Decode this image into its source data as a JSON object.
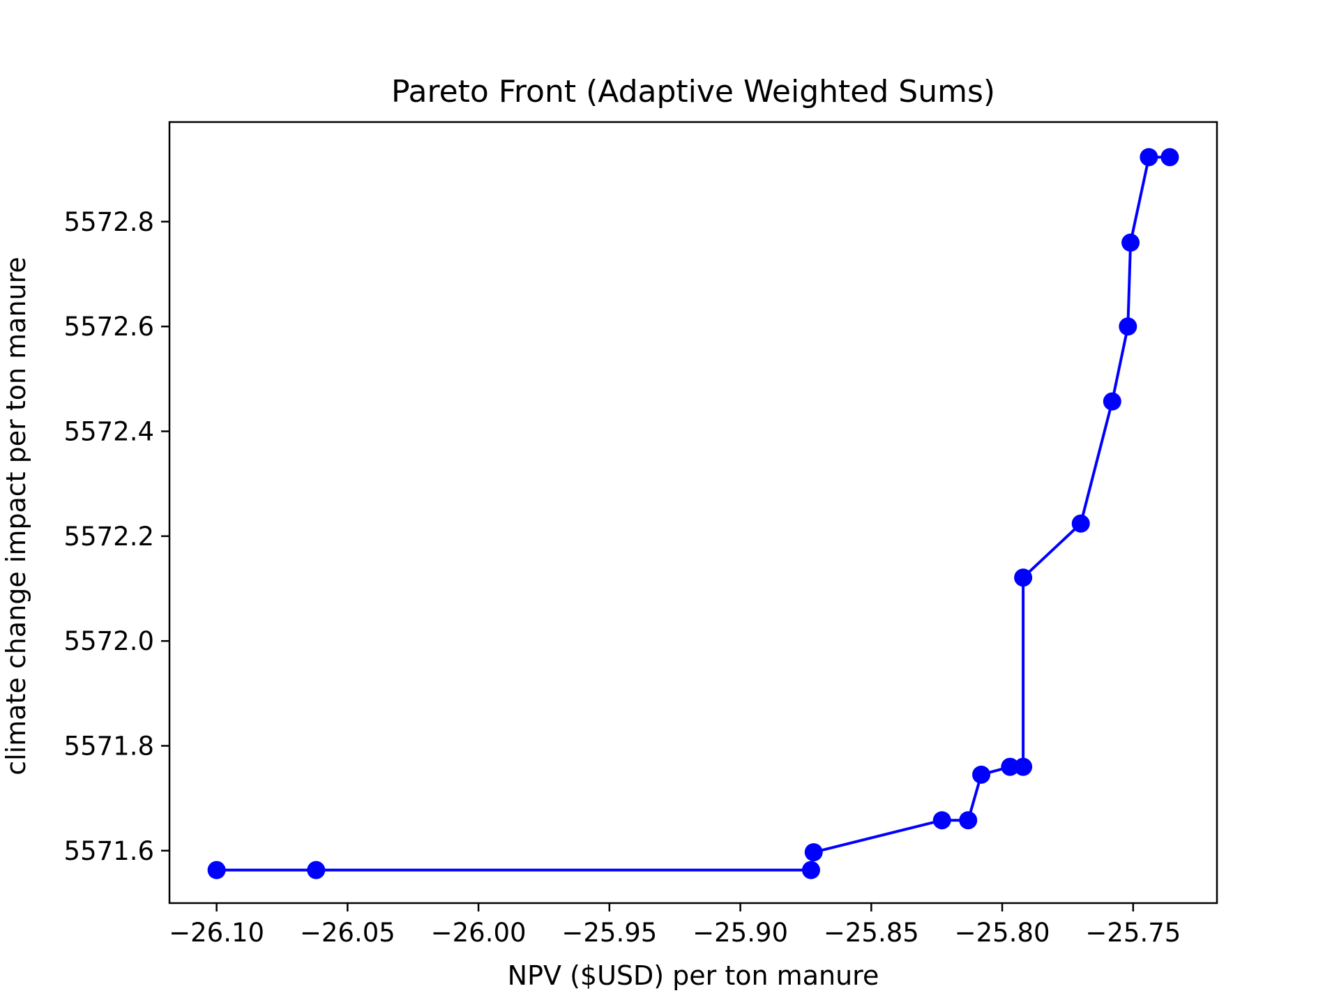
{
  "chart_data": {
    "type": "line",
    "title": "Pareto Front (Adaptive Weighted Sums)",
    "xlabel": "NPV ($USD) per ton manure",
    "ylabel": "climate change impact per ton manure",
    "xlim": [
      -26.118,
      -25.718
    ],
    "ylim": [
      5571.5,
      5572.99
    ],
    "xticks": [
      -26.1,
      -26.05,
      -26.0,
      -25.95,
      -25.9,
      -25.85,
      -25.8,
      -25.75
    ],
    "xtick_labels": [
      "−26.10",
      "−26.05",
      "−26.00",
      "−25.95",
      "−25.90",
      "−25.85",
      "−25.80",
      "−25.75"
    ],
    "yticks": [
      5571.6,
      5571.8,
      5572.0,
      5572.2,
      5572.4,
      5572.6,
      5572.8
    ],
    "ytick_labels": [
      "5571.6",
      "5571.8",
      "5572.0",
      "5572.2",
      "5572.4",
      "5572.6",
      "5572.8"
    ],
    "grid": false,
    "color": "#0000ff",
    "series": [
      {
        "x": [
          -26.1,
          -26.062,
          -25.873,
          -25.872,
          -25.823,
          -25.813,
          -25.808,
          -25.797,
          -25.792,
          -25.792,
          -25.77,
          -25.758,
          -25.752,
          -25.751,
          -25.744,
          -25.736
        ],
        "y": [
          5571.563,
          5571.563,
          5571.563,
          5571.597,
          5571.658,
          5571.658,
          5571.745,
          5571.76,
          5571.76,
          5572.121,
          5572.224,
          5572.457,
          5572.6,
          5572.76,
          5572.923,
          5572.923
        ]
      }
    ]
  }
}
